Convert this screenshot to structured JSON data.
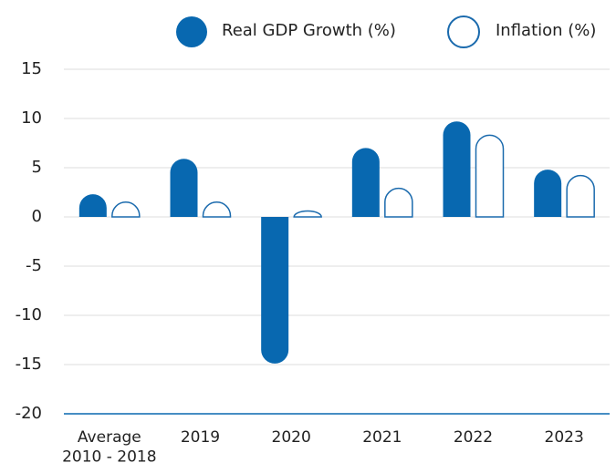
{
  "chart_data": {
    "type": "bar",
    "categories": [
      "Average\n2010 - 2018",
      "2019",
      "2020",
      "2021",
      "2022",
      "2023"
    ],
    "series": [
      {
        "name": "Real GDP Growth (%)",
        "color": "#0868b0",
        "values": [
          2.3,
          5.9,
          -14.9,
          7.0,
          9.7,
          4.8
        ]
      },
      {
        "name": "Inflation (%)",
        "color": "#1a6aad",
        "values": [
          1.5,
          1.5,
          0.6,
          2.9,
          8.3,
          4.2
        ]
      }
    ],
    "ylim": [
      -20,
      15
    ],
    "yticks": [
      -20,
      -15,
      -10,
      -5,
      0,
      5,
      10,
      15
    ],
    "grid": true,
    "legend": "top"
  }
}
